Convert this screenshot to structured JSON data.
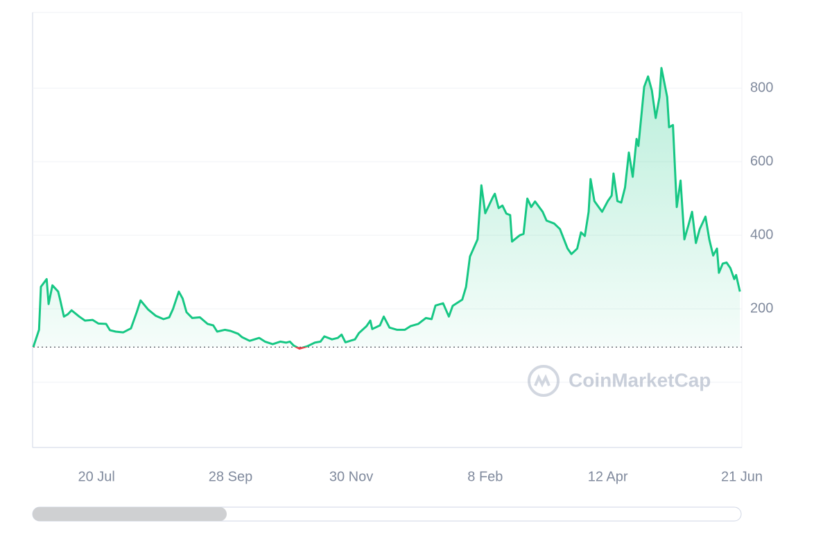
{
  "chart_data": {
    "type": "line",
    "x": [
      0,
      3,
      4,
      7,
      8,
      10,
      13,
      14,
      16,
      18,
      20,
      24,
      27,
      31,
      34,
      38,
      40,
      43,
      47,
      51,
      54,
      56,
      60,
      64,
      68,
      71,
      73,
      76,
      78,
      80,
      83,
      87,
      91,
      94,
      96,
      100,
      103,
      107,
      109,
      113,
      118,
      121,
      125,
      129,
      132,
      134,
      136,
      139,
      143,
      147,
      150,
      152,
      156,
      159,
      161,
      163,
      168,
      170,
      174,
      176,
      177,
      181,
      183,
      186,
      190,
      194,
      197,
      201,
      205,
      208,
      210,
      214,
      217,
      219,
      224,
      226,
      228,
      232,
      234,
      236,
      240,
      241,
      243,
      245,
      247,
      249,
      250,
      254,
      256,
      258,
      260,
      262,
      266,
      268,
      272,
      275,
      279,
      281,
      284,
      286,
      288,
      290,
      291,
      293,
      297,
      300,
      302,
      303,
      305,
      307,
      309,
      311,
      313,
      315,
      316,
      319,
      321,
      323,
      325,
      327,
      328,
      331,
      332,
      334,
      336,
      338,
      340,
      342,
      344,
      346,
      348,
      351,
      353,
      355,
      357,
      358,
      360,
      362,
      364,
      366,
      367,
      369
    ],
    "values": [
      96,
      143,
      260,
      281,
      213,
      264,
      247,
      225,
      179,
      185,
      196,
      179,
      168,
      170,
      160,
      159,
      142,
      138,
      136,
      147,
      191,
      223,
      198,
      181,
      172,
      177,
      200,
      247,
      228,
      191,
      175,
      177,
      159,
      155,
      138,
      143,
      140,
      132,
      123,
      113,
      121,
      111,
      104,
      111,
      108,
      111,
      100,
      92,
      98,
      108,
      111,
      125,
      117,
      121,
      130,
      109,
      117,
      134,
      153,
      168,
      145,
      155,
      179,
      149,
      143,
      143,
      153,
      159,
      175,
      172,
      209,
      215,
      179,
      208,
      225,
      260,
      342,
      389,
      536,
      460,
      504,
      513,
      474,
      481,
      459,
      455,
      383,
      400,
      404,
      500,
      477,
      492,
      464,
      440,
      432,
      417,
      364,
      349,
      364,
      408,
      398,
      464,
      553,
      493,
      464,
      493,
      508,
      568,
      493,
      489,
      530,
      625,
      559,
      662,
      643,
      804,
      832,
      794,
      719,
      776,
      855,
      776,
      694,
      700,
      477,
      549,
      389,
      426,
      464,
      379,
      417,
      451,
      389,
      345,
      364,
      298,
      323,
      326,
      311,
      281,
      292,
      247
    ],
    "color": "#16c784",
    "down_color": "#ea3943",
    "xlim": [
      0,
      370
    ],
    "xticks": [
      {
        "value": 33,
        "label": "20 Jul"
      },
      {
        "value": 103,
        "label": "28 Sep"
      },
      {
        "value": 166,
        "label": "30 Nov"
      },
      {
        "value": 236,
        "label": "8 Feb"
      },
      {
        "value": 300,
        "label": "12 Apr"
      },
      {
        "value": 370,
        "label": "21 Jun"
      }
    ],
    "ylim": [
      -177,
      1006
    ],
    "yticks": [
      200,
      400,
      600,
      800
    ],
    "grid": true,
    "watermark": "CoinMarketCap"
  }
}
